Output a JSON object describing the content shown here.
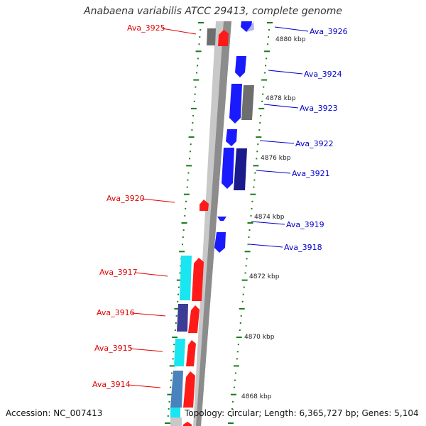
{
  "title": "Anabaena variabilis ATCC 29413, complete genome",
  "accession": "Accession: NC_007413",
  "topology": "Topology: circular; Length: 6,365,727 bp; Genes: 5,104",
  "colors": {
    "left_label": "#e00000",
    "right_label": "#0000cc",
    "tick": "#1a7a1a",
    "backbone_dark": "#8c8c8c",
    "backbone_light": "#c8c8c8"
  },
  "scale_labels": [
    "4880 kbp",
    "4878 kbp",
    "4876 kbp",
    "4874 kbp",
    "4872 kbp",
    "4870 kbp",
    "4868 kbp"
  ],
  "left_gene_labels": [
    "Ava_3925",
    "Ava_3920",
    "Ava_3917",
    "Ava_3916",
    "Ava_3915",
    "Ava_3914"
  ],
  "right_gene_labels": [
    "Ava_3926",
    "Ava_3924",
    "Ava_3923",
    "Ava_3922",
    "Ava_3921",
    "Ava_3919",
    "Ava_3918"
  ]
}
